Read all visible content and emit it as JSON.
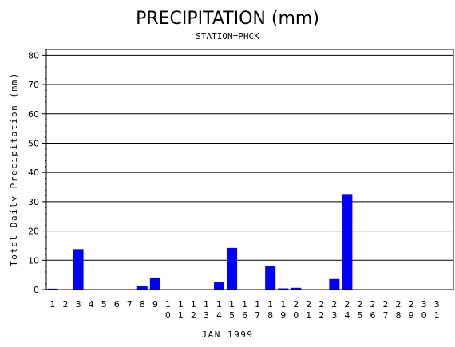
{
  "chart_data": {
    "type": "bar",
    "title": "PRECIPITATION (mm)",
    "subtitle": "STATION=PHCK",
    "xlabel": "JAN 1999",
    "ylabel": "Total Daily Precipitation (mm)",
    "ylim": [
      0,
      82
    ],
    "yticks": [
      0,
      10,
      20,
      30,
      40,
      50,
      60,
      70,
      80
    ],
    "grid": true,
    "bar_color": "#0000ff",
    "categories": [
      "1",
      "2",
      "3",
      "4",
      "5",
      "6",
      "7",
      "8",
      "9",
      "10",
      "11",
      "12",
      "13",
      "14",
      "15",
      "16",
      "17",
      "18",
      "19",
      "20",
      "21",
      "22",
      "23",
      "24",
      "25",
      "26",
      "27",
      "28",
      "29",
      "30",
      "31"
    ],
    "values": [
      0.3,
      0,
      13.8,
      0,
      0,
      0,
      0,
      1.2,
      4.1,
      0,
      0,
      0,
      0,
      2.5,
      14.2,
      0,
      0,
      8.1,
      0.4,
      0.6,
      0,
      0,
      3.6,
      32.6,
      0,
      0,
      0,
      0,
      0,
      0,
      0
    ]
  }
}
